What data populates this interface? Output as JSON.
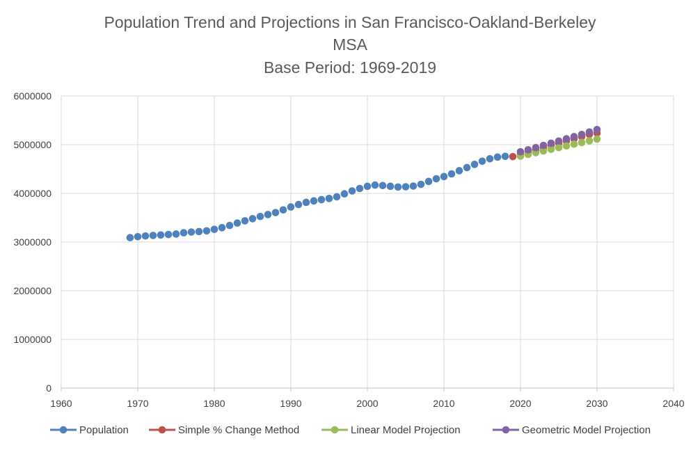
{
  "chart_data": {
    "type": "scatter",
    "title_lines": [
      "Population Trend and Projections in San Francisco-Oakland-Berkeley",
      "MSA",
      "Base Period: 1969-2019"
    ],
    "xlabel": "",
    "ylabel": "",
    "xlim": [
      1960,
      2040
    ],
    "ylim": [
      0,
      6000000
    ],
    "x_ticks": [
      "1960",
      "1970",
      "1980",
      "1990",
      "2000",
      "2010",
      "2020",
      "2030",
      "2040"
    ],
    "y_ticks": [
      "0",
      "1000000",
      "2000000",
      "3000000",
      "4000000",
      "5000000",
      "6000000"
    ],
    "grid": true,
    "legend_position": "bottom",
    "series": [
      {
        "name": "Population",
        "color": "#4F81BD",
        "points": [
          [
            1969,
            3090000
          ],
          [
            1970,
            3110000
          ],
          [
            1971,
            3125000
          ],
          [
            1972,
            3135000
          ],
          [
            1973,
            3145000
          ],
          [
            1974,
            3155000
          ],
          [
            1975,
            3165000
          ],
          [
            1976,
            3190000
          ],
          [
            1977,
            3205000
          ],
          [
            1978,
            3215000
          ],
          [
            1979,
            3230000
          ],
          [
            1980,
            3260000
          ],
          [
            1981,
            3295000
          ],
          [
            1982,
            3340000
          ],
          [
            1983,
            3390000
          ],
          [
            1984,
            3435000
          ],
          [
            1985,
            3480000
          ],
          [
            1986,
            3525000
          ],
          [
            1987,
            3565000
          ],
          [
            1988,
            3605000
          ],
          [
            1989,
            3660000
          ],
          [
            1990,
            3720000
          ],
          [
            1991,
            3770000
          ],
          [
            1992,
            3815000
          ],
          [
            1993,
            3845000
          ],
          [
            1994,
            3870000
          ],
          [
            1995,
            3895000
          ],
          [
            1996,
            3930000
          ],
          [
            1997,
            3990000
          ],
          [
            1998,
            4050000
          ],
          [
            1999,
            4100000
          ],
          [
            2000,
            4145000
          ],
          [
            2001,
            4170000
          ],
          [
            2002,
            4160000
          ],
          [
            2003,
            4145000
          ],
          [
            2004,
            4130000
          ],
          [
            2005,
            4135000
          ],
          [
            2006,
            4150000
          ],
          [
            2007,
            4185000
          ],
          [
            2008,
            4245000
          ],
          [
            2009,
            4300000
          ],
          [
            2010,
            4345000
          ],
          [
            2011,
            4400000
          ],
          [
            2012,
            4465000
          ],
          [
            2013,
            4530000
          ],
          [
            2014,
            4595000
          ],
          [
            2015,
            4660000
          ],
          [
            2016,
            4710000
          ],
          [
            2017,
            4745000
          ],
          [
            2018,
            4760000
          ]
        ]
      },
      {
        "name": "Simple %  Change Method",
        "color": "#C0504D",
        "points": [
          [
            2019,
            4755000
          ],
          [
            2020,
            4800000
          ],
          [
            2021,
            4845000
          ],
          [
            2022,
            4890000
          ],
          [
            2023,
            4935000
          ],
          [
            2024,
            4985000
          ],
          [
            2025,
            5030000
          ],
          [
            2026,
            5075000
          ],
          [
            2027,
            5120000
          ],
          [
            2028,
            5165000
          ],
          [
            2029,
            5210000
          ],
          [
            2030,
            5240000
          ]
        ]
      },
      {
        "name": "Linear Model Projection",
        "color": "#9BBB59",
        "points": [
          [
            2020,
            4765000
          ],
          [
            2021,
            4800000
          ],
          [
            2022,
            4835000
          ],
          [
            2023,
            4870000
          ],
          [
            2024,
            4905000
          ],
          [
            2025,
            4940000
          ],
          [
            2026,
            4975000
          ],
          [
            2027,
            5010000
          ],
          [
            2028,
            5045000
          ],
          [
            2029,
            5080000
          ],
          [
            2030,
            5115000
          ]
        ]
      },
      {
        "name": "Geometric Model Projection",
        "color": "#8064A2",
        "points": [
          [
            2020,
            4855000
          ],
          [
            2021,
            4895000
          ],
          [
            2022,
            4940000
          ],
          [
            2023,
            4985000
          ],
          [
            2024,
            5030000
          ],
          [
            2025,
            5075000
          ],
          [
            2026,
            5120000
          ],
          [
            2027,
            5165000
          ],
          [
            2028,
            5210000
          ],
          [
            2029,
            5260000
          ],
          [
            2030,
            5310000
          ]
        ]
      }
    ]
  }
}
